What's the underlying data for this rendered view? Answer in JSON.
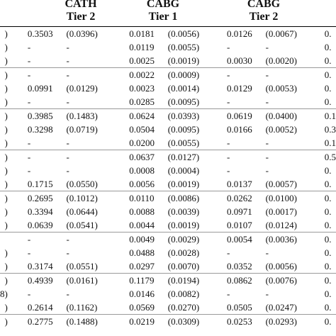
{
  "headers": [
    {
      "name": "CATH",
      "tier": "Tier 2"
    },
    {
      "name": "CABG",
      "tier": "Tier 1"
    },
    {
      "name": "CABG",
      "tier": "Tier 2"
    }
  ],
  "rows": [
    {
      "stub": ")",
      "c": [
        "0.3503",
        "(0.0396)",
        "0.0181",
        "(0.0056)",
        "0.0126",
        "(0.0067)",
        "0."
      ],
      "sep": false
    },
    {
      "stub": ")",
      "c": [
        "-",
        "-",
        "0.0119",
        "(0.0055)",
        "-",
        "-",
        "0."
      ],
      "sep": false
    },
    {
      "stub": ")",
      "c": [
        "-",
        "-",
        "0.0025",
        "(0.0019)",
        "0.0030",
        "(0.0020)",
        "0."
      ],
      "sep": false
    },
    {
      "stub": ")",
      "c": [
        "-",
        "-",
        "0.0022",
        "(0.0009)",
        "-",
        "-",
        "0."
      ],
      "sep": true
    },
    {
      "stub": ")",
      "c": [
        "0.0991",
        "(0.0129)",
        "0.0023",
        "(0.0014)",
        "0.0129",
        "(0.0053)",
        "0."
      ],
      "sep": false
    },
    {
      "stub": ")",
      "c": [
        "-",
        "-",
        "0.0285",
        "(0.0095)",
        "-",
        "-",
        "0."
      ],
      "sep": false
    },
    {
      "stub": ")",
      "c": [
        "0.3985",
        "(0.1483)",
        "0.0624",
        "(0.0393)",
        "0.0619",
        "(0.0400)",
        "0.1"
      ],
      "sep": true
    },
    {
      "stub": ")",
      "c": [
        "0.3298",
        "(0.0719)",
        "0.0504",
        "(0.0095)",
        "0.0166",
        "(0.0052)",
        "0.3"
      ],
      "sep": false
    },
    {
      "stub": ")",
      "c": [
        "-",
        "-",
        "0.0200",
        "(0.0055)",
        "-",
        "-",
        "0.1"
      ],
      "sep": false
    },
    {
      "stub": ")",
      "c": [
        "-",
        "-",
        "0.0637",
        "(0.0127)",
        "-",
        "-",
        "0.5"
      ],
      "sep": true
    },
    {
      "stub": ")",
      "c": [
        "-",
        "-",
        "0.0008",
        "(0.0004)",
        "-",
        "-",
        "0."
      ],
      "sep": false
    },
    {
      "stub": ")",
      "c": [
        "0.1715",
        "(0.0550)",
        "0.0056",
        "(0.0019)",
        "0.0137",
        "(0.0057)",
        "0."
      ],
      "sep": false
    },
    {
      "stub": ")",
      "c": [
        "0.2695",
        "(0.1012)",
        "0.0110",
        "(0.0086)",
        "0.0262",
        "(0.0100)",
        "0."
      ],
      "sep": true
    },
    {
      "stub": ")",
      "c": [
        "0.3394",
        "(0.0644)",
        "0.0088",
        "(0.0039)",
        "0.0971",
        "(0.0017)",
        "0."
      ],
      "sep": false
    },
    {
      "stub": ")",
      "c": [
        "0.0639",
        "(0.0541)",
        "0.0044",
        "(0.0019)",
        "0.0107",
        "(0.0124)",
        "0."
      ],
      "sep": false
    },
    {
      "stub": "",
      "c": [
        "-",
        "-",
        "0.0049",
        "(0.0029)",
        "0.0054",
        "(0.0036)",
        "0."
      ],
      "sep": true
    },
    {
      "stub": ")",
      "c": [
        "-",
        "-",
        "0.0488",
        "(0.0028)",
        "-",
        "-",
        "0."
      ],
      "sep": false
    },
    {
      "stub": ")",
      "c": [
        "0.3174",
        "(0.0551)",
        "0.0297",
        "(0.0070)",
        "0.0352",
        "(0.0056)",
        "0."
      ],
      "sep": false
    },
    {
      "stub": ")",
      "c": [
        "0.4939",
        "(0.0161)",
        "0.1179",
        "(0.0194)",
        "0.0862",
        "(0.0076)",
        "0."
      ],
      "sep": true
    },
    {
      "stub": "8)",
      "c": [
        "-",
        "-",
        "0.0146",
        "(0.0082)",
        "-",
        "-",
        "0."
      ],
      "sep": false
    },
    {
      "stub": ")",
      "c": [
        "0.2614",
        "(0.1162)",
        "0.0569",
        "(0.0270)",
        "0.0505",
        "(0.0247)",
        "0."
      ],
      "sep": false
    },
    {
      "stub": ")",
      "c": [
        "0.2775",
        "(0.1488)",
        "0.0219",
        "(0.0309)",
        "0.0253",
        "(0.0293)",
        "0."
      ],
      "sep": true
    }
  ]
}
